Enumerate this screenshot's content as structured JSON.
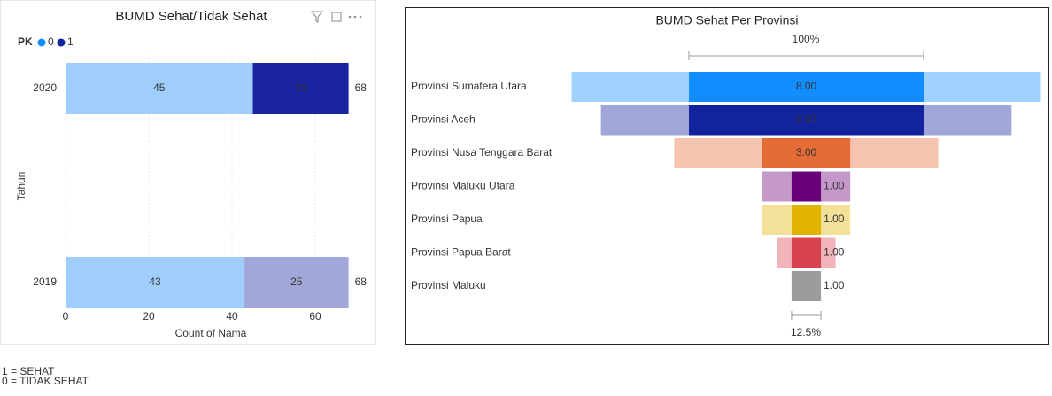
{
  "chart_data": [
    {
      "type": "stacked-bar-horizontal",
      "title": "BUMD Sehat/Tidak Sehat",
      "legend_title": "PK",
      "categories": [
        "2020",
        "2019"
      ],
      "series": [
        {
          "name": "0",
          "color": "#118dff",
          "bar_colors": [
            "#a0cefc",
            "#a0cefc"
          ],
          "values": [
            45,
            43
          ]
        },
        {
          "name": "1",
          "color": "#12239e",
          "bar_colors": [
            "#1a24a0",
            "#a2a7da"
          ],
          "values": [
            23,
            25
          ]
        }
      ],
      "totals": [
        68,
        68
      ],
      "xlim": [
        0,
        70
      ],
      "xticks": [
        0,
        20,
        40,
        60
      ],
      "x_label": "Count of Nama",
      "y_label": "Tahun",
      "grid": true
    },
    {
      "type": "funnel",
      "title": "BUMD Sehat Per Provinsi",
      "categories": [
        "Provinsi Sumatera Utara",
        "Provinsi Aceh",
        "Provinsi Nusa Tenggara Barat",
        "Provinsi Maluku Utara",
        "Provinsi Papua",
        "Provinsi Papua Barat",
        "Provinsi Maluku"
      ],
      "values": [
        8,
        8,
        3,
        1,
        1,
        1,
        1
      ],
      "value_labels": [
        "8.00",
        "8.00",
        "3.00",
        "1.00",
        "1.00",
        "1.00",
        "1.00"
      ],
      "totals": [
        16,
        14,
        9,
        3,
        3,
        2,
        1
      ],
      "colors": [
        "#118dff",
        "#12239e",
        "#e66c37",
        "#6b007b",
        "#e0b400",
        "#d9434f",
        "#9c9c9c"
      ],
      "top_annotation": "100%",
      "bottom_annotation": "12.5%"
    }
  ],
  "notes": [
    {
      "text": "1 = SEHAT",
      "color": "#6b7a1e"
    },
    {
      "text": "0 = TIDAK SEHAT",
      "color": "#d0302b"
    }
  ]
}
